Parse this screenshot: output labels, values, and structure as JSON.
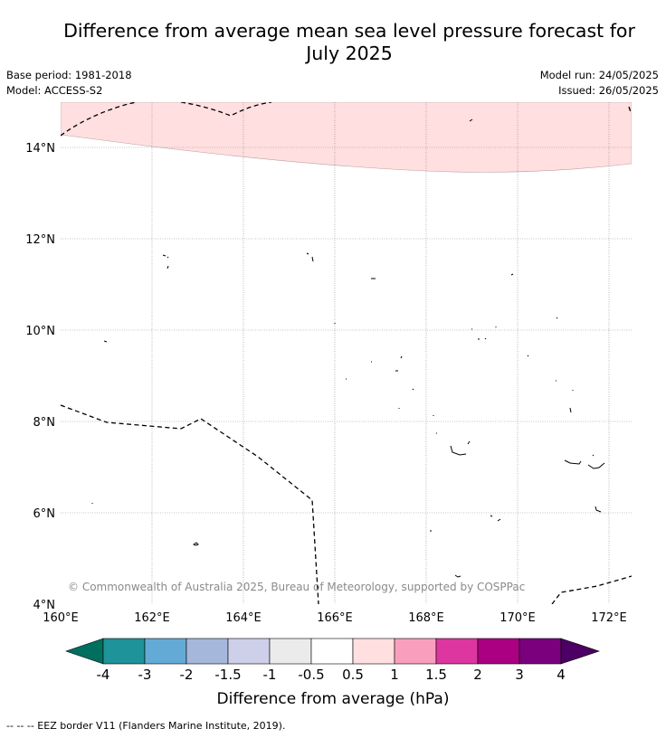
{
  "title_line1": "Difference from average mean sea level pressure forecast for",
  "title_line2": "July 2025",
  "base_period": "Base period: 1981-2018",
  "model": "Model: ACCESS-S2",
  "model_run": "Model run: 24/05/2025",
  "issued": "Issued: 26/05/2025",
  "copyright": "© Commonwealth of Australia 2025, Bureau of Meteorology, supported by COSPPac",
  "footnote": "--  --  -- EEZ border V11 (Flanders Marine Institute, 2019).",
  "map": {
    "lon_labels": [
      "160°E",
      "162°E",
      "164°E",
      "166°E",
      "168°E",
      "170°E",
      "172°E"
    ],
    "lat_labels": [
      "14°N",
      "12°N",
      "10°N",
      "8°N",
      "6°N",
      "4°N"
    ]
  },
  "colorbar": {
    "label": "Difference from average (hPa)",
    "tick_labels": [
      "-4",
      "-3",
      "-2",
      "-1.5",
      "-1",
      "-0.5",
      "0.5",
      "1",
      "1.5",
      "2",
      "3",
      "4"
    ],
    "colors": [
      "#006f5f",
      "#1e9399",
      "#64aad6",
      "#a5b8dc",
      "#cecfe8",
      "#ebebeb",
      "#ffffff",
      "#ffdfe0",
      "#f99fbd",
      "#dd36a0",
      "#ab0082",
      "#7a007d",
      "#4c0064"
    ]
  },
  "anomaly_fill_color": "#ffdfe0"
}
